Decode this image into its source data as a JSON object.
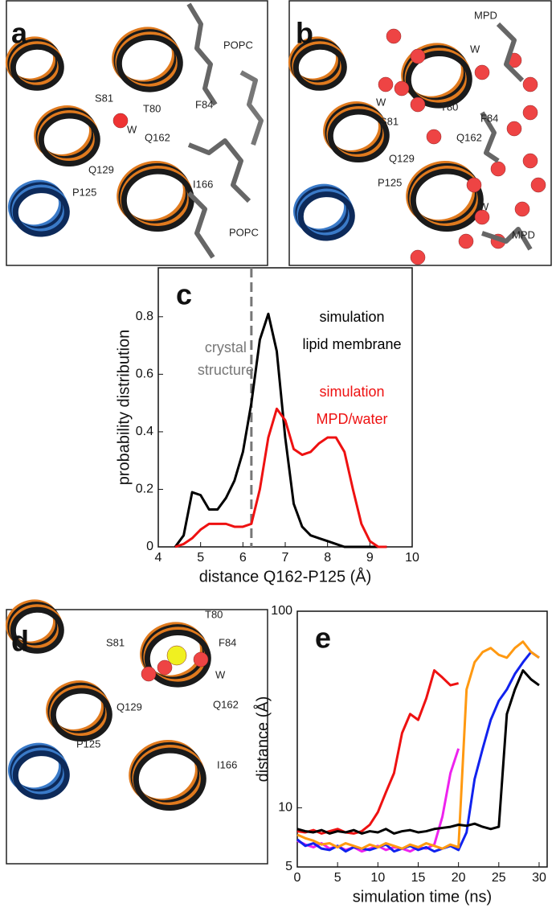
{
  "images": [
    {
      "panel": "a",
      "labels": [
        "POPC",
        "F84",
        "S81",
        "T80",
        "W",
        "Q162",
        "Q129",
        "P125",
        "I166",
        "POPC"
      ]
    },
    {
      "panel": "b",
      "labels": [
        "MPD",
        "W",
        "W",
        "T80",
        "F84",
        "S81",
        "Q162",
        "Q129",
        "P125",
        "W",
        "MPD"
      ]
    },
    {
      "panel": "d",
      "labels": [
        "T80",
        "S81",
        "F84",
        "W",
        "Q162",
        "Q129",
        "P125",
        "I166"
      ]
    }
  ],
  "chart_data": [
    {
      "type": "line",
      "panel_label": "c",
      "xlabel": "distance Q162-P125 (Å)",
      "ylabel": "probability distribution",
      "x": [
        4.4,
        4.6,
        4.8,
        5.0,
        5.2,
        5.4,
        5.6,
        5.8,
        6.0,
        6.2,
        6.4,
        6.6,
        6.8,
        7.0,
        7.2,
        7.4,
        7.6,
        7.8,
        8.0,
        8.2,
        8.4,
        8.6,
        8.8,
        9.0,
        9.2,
        9.4
      ],
      "series": [
        {
          "name": [
            "simulation",
            "lipid membrane"
          ],
          "color": "#000000",
          "values": [
            0,
            0.04,
            0.19,
            0.18,
            0.13,
            0.13,
            0.17,
            0.23,
            0.33,
            0.5,
            0.72,
            0.81,
            0.68,
            0.38,
            0.15,
            0.07,
            0.04,
            0.03,
            0.02,
            0.01,
            0,
            0,
            0,
            0,
            0,
            0
          ]
        },
        {
          "name": [
            "simulation",
            "MPD/water"
          ],
          "color": "#ee1111",
          "values": [
            0,
            0.01,
            0.03,
            0.06,
            0.08,
            0.08,
            0.08,
            0.07,
            0.07,
            0.08,
            0.2,
            0.38,
            0.48,
            0.44,
            0.34,
            0.32,
            0.33,
            0.36,
            0.38,
            0.38,
            0.33,
            0.2,
            0.08,
            0.02,
            0,
            0
          ]
        }
      ],
      "reference_line": {
        "x": 6.2,
        "label": [
          "crystal",
          "structure"
        ],
        "color": "#777777"
      },
      "xlim": [
        4,
        10
      ],
      "xticks": [
        4,
        5,
        6,
        7,
        8,
        9,
        10
      ],
      "ylim": [
        0,
        0.97
      ],
      "yticks": [
        0,
        0.2,
        0.4,
        0.6,
        0.8
      ],
      "log_y": false
    },
    {
      "type": "line",
      "panel_label": "e",
      "xlabel": "simulation time (ns)",
      "ylabel": "distance (Å)",
      "series": [
        {
          "color": "#ee1111",
          "x": [
            0,
            1,
            2,
            3,
            4,
            5,
            6,
            7,
            8,
            9,
            10,
            11,
            12,
            13,
            14,
            15,
            16,
            17,
            18,
            19,
            20
          ],
          "values": [
            7.6,
            7.5,
            7.7,
            7.4,
            7.6,
            7.8,
            7.5,
            7.4,
            7.6,
            8.2,
            9.5,
            12,
            15,
            24,
            30,
            28,
            36,
            50,
            46,
            42,
            43
          ]
        },
        {
          "color": "#ee22ee",
          "x": [
            0,
            1,
            2,
            3,
            4,
            5,
            6,
            7,
            8,
            9,
            10,
            11,
            12,
            13,
            14,
            15,
            16,
            17,
            18,
            19,
            20
          ],
          "values": [
            6.8,
            6.5,
            6.3,
            6.6,
            6.2,
            6.4,
            6.1,
            6.3,
            6.0,
            6.2,
            6.4,
            6.1,
            6.3,
            6.2,
            6.0,
            6.3,
            6.2,
            6.5,
            9,
            15,
            20
          ]
        },
        {
          "color": "#1122ee",
          "x": [
            0,
            1,
            2,
            3,
            4,
            5,
            6,
            7,
            8,
            9,
            10,
            11,
            12,
            13,
            14,
            15,
            16,
            17,
            18,
            19,
            20,
            21,
            22,
            23,
            24,
            25,
            26,
            27,
            28,
            29,
            30
          ],
          "values": [
            6.9,
            6.4,
            6.6,
            6.2,
            6.1,
            6.4,
            6.0,
            6.3,
            6.2,
            6.1,
            6.3,
            6.5,
            6.0,
            6.2,
            6.4,
            6.1,
            6.3,
            6.0,
            6.2,
            6.4,
            6.1,
            7.5,
            14,
            20,
            28,
            35,
            40,
            48,
            55,
            62,
            58
          ]
        },
        {
          "color": "#ff9911",
          "x": [
            0,
            1,
            2,
            3,
            4,
            5,
            6,
            7,
            8,
            9,
            10,
            11,
            12,
            13,
            14,
            15,
            16,
            17,
            18,
            19,
            20,
            21,
            22,
            23,
            24,
            25,
            26,
            27,
            28,
            29,
            30
          ],
          "values": [
            7.3,
            7.0,
            6.8,
            6.5,
            6.6,
            6.3,
            6.6,
            6.4,
            6.2,
            6.5,
            6.3,
            6.6,
            6.4,
            6.2,
            6.5,
            6.3,
            6.6,
            6.4,
            6.2,
            6.5,
            6.3,
            40,
            55,
            62,
            65,
            60,
            58,
            65,
            70,
            62,
            58
          ]
        },
        {
          "color": "#000000",
          "x": [
            0,
            1,
            2,
            3,
            4,
            5,
            6,
            7,
            8,
            9,
            10,
            11,
            12,
            13,
            14,
            15,
            16,
            17,
            18,
            19,
            20,
            21,
            22,
            23,
            24,
            25,
            26,
            27,
            28,
            29,
            30
          ],
          "values": [
            7.8,
            7.6,
            7.5,
            7.7,
            7.4,
            7.6,
            7.5,
            7.7,
            7.4,
            7.6,
            7.5,
            7.8,
            7.4,
            7.6,
            7.7,
            7.5,
            7.6,
            7.8,
            7.9,
            8.0,
            8.2,
            8.1,
            8.3,
            8.0,
            7.8,
            8.0,
            30,
            40,
            50,
            45,
            42
          ]
        }
      ],
      "xlim": [
        0,
        31
      ],
      "xticks": [
        0,
        5,
        10,
        15,
        20,
        25,
        30
      ],
      "ylim": [
        5,
        100
      ],
      "yticks": [
        5,
        10,
        100
      ],
      "log_y": true
    }
  ]
}
